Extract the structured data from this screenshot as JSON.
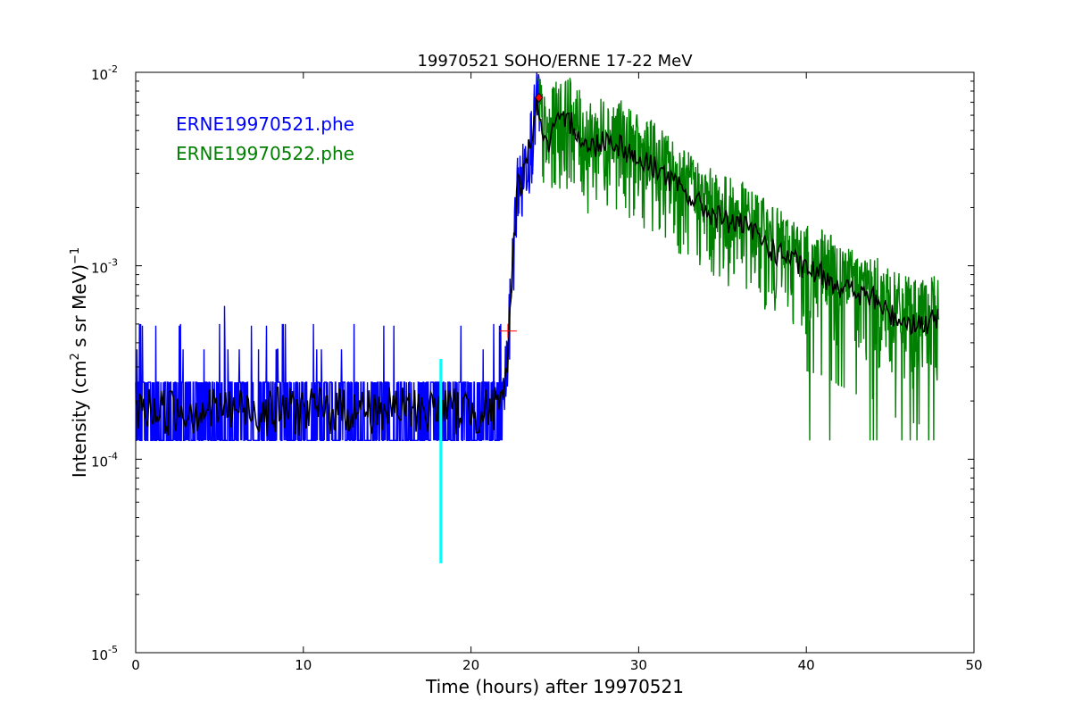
{
  "chart_data": {
    "type": "line",
    "title": "19970521 SOHO/ERNE 17-22 MeV",
    "xlabel": "Time (hours) after 19970521",
    "ylabel_main": "Intensity (cm",
    "ylabel_sup1": "2",
    "ylabel_mid": " s sr MeV)",
    "ylabel_sup2": "−1",
    "xlim": [
      0,
      50
    ],
    "ylim": [
      1e-05,
      0.01
    ],
    "yscale": "log",
    "grid": false,
    "x_ticks": [
      "0",
      "10",
      "20",
      "30",
      "40",
      "50"
    ],
    "x_tick_values": [
      0,
      10,
      20,
      30,
      40,
      50
    ],
    "y_ticks": [
      {
        "value": 1e-05,
        "base": "10",
        "exp": "-5"
      },
      {
        "value": 0.0001,
        "base": "10",
        "exp": "-4"
      },
      {
        "value": 0.001,
        "base": "10",
        "exp": "-3"
      },
      {
        "value": 0.01,
        "base": "10",
        "exp": "-2"
      }
    ],
    "legend_placement": "top-left",
    "legend": [
      {
        "label": "ERNE19970521.phe",
        "color": "#0000ff"
      },
      {
        "label": "ERNE19970522.phe",
        "color": "#008000"
      }
    ],
    "series": [
      {
        "name": "ERNE19970521.phe",
        "color": "#0000ff",
        "baseline_levels": [
          0.000125,
          0.00025,
          0.00037,
          0.0005
        ],
        "spike_points": {
          "x": [
            0.4,
            1.2,
            2.6,
            5.3,
            6.9,
            7.8,
            14.8,
            15.4,
            19.4,
            21.7
          ],
          "y": [
            0.00049,
            0.00049,
            0.00049,
            0.00062,
            0.00049,
            0.00049,
            0.00049,
            0.00049,
            0.00049,
            0.00049
          ]
        },
        "profile": {
          "x": [
            0,
            21.9,
            22.0,
            22.2,
            22.4,
            22.6,
            22.8,
            23.0,
            23.2,
            23.4,
            23.6,
            23.8,
            24.0
          ],
          "y": [
            0.00018,
            0.00018,
            0.00024,
            0.00035,
            0.0008,
            0.0015,
            0.0028,
            0.0026,
            0.0033,
            0.004,
            0.0046,
            0.006,
            0.0072
          ]
        },
        "x_range": [
          0,
          24.1
        ]
      },
      {
        "name": "ERNE19970522.phe",
        "color": "#008000",
        "x_range": [
          24.0,
          47.9
        ],
        "profile": {
          "x": [
            24.0,
            24.5,
            25.0,
            25.5,
            26.0,
            27.0,
            28.0,
            29.0,
            30.0,
            31.0,
            32.0,
            33.0,
            34.0,
            35.0,
            36.0,
            37.0,
            38.0,
            39.0,
            40.0,
            41.0,
            42.0,
            43.0,
            44.0,
            45.0,
            46.0,
            47.0,
            47.9
          ],
          "y": [
            0.0065,
            0.004,
            0.0053,
            0.0055,
            0.0056,
            0.004,
            0.0046,
            0.0042,
            0.0035,
            0.0033,
            0.0027,
            0.0023,
            0.00195,
            0.00175,
            0.00165,
            0.00145,
            0.0012,
            0.0011,
            0.00095,
            0.0009,
            0.0008,
            0.00072,
            0.00068,
            0.00056,
            0.00052,
            0.0005,
            0.00053
          ]
        },
        "dropouts": {
          "x": [
            40.2,
            41.4,
            43.8,
            44.0,
            44.2,
            45.7,
            46.2,
            46.6,
            47.3,
            47.6
          ],
          "y": [
            0.000125,
            0.000125,
            0.000125,
            0.000125,
            0.000125,
            0.000125,
            0.000125,
            0.000125,
            0.000125,
            0.000125
          ]
        }
      },
      {
        "name": "",
        "color": "#000000",
        "note_type": "smoothed"
      }
    ],
    "markers": {
      "cyan_line": {
        "x": 18.2,
        "y_top": 0.00033,
        "y_bottom": 2.9e-05,
        "color": "#00ffff"
      },
      "red_cross": {
        "x": 22.2,
        "y": 0.00046,
        "color": "#ff0000"
      },
      "red_diamond": {
        "x": 24.05,
        "y": 0.0074,
        "color": "#ff0000"
      }
    }
  }
}
